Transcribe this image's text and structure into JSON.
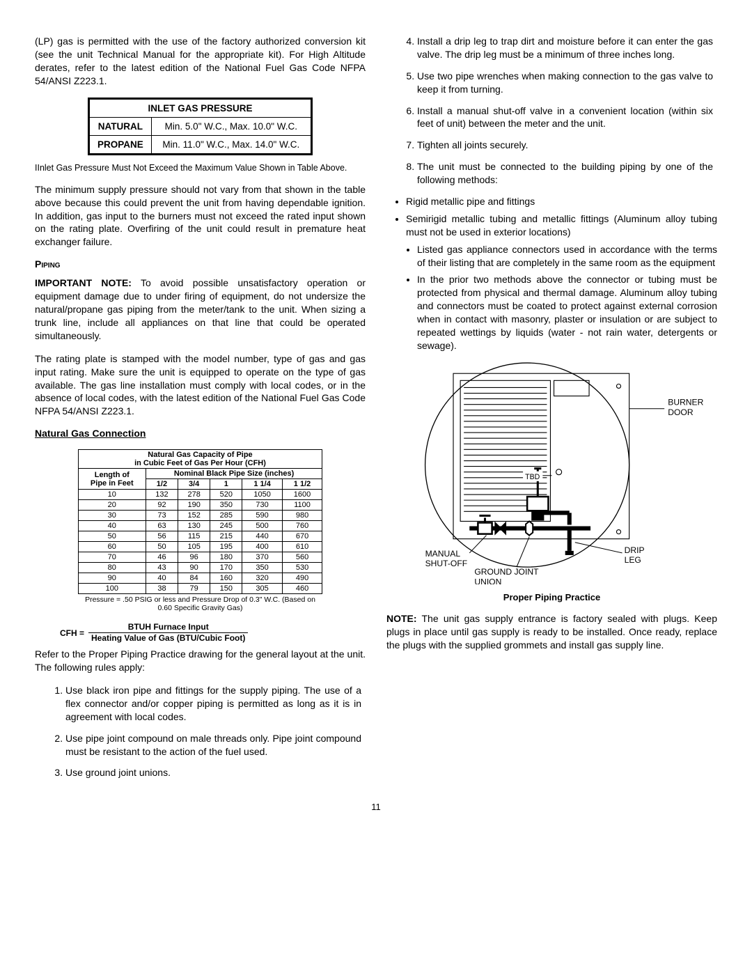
{
  "left": {
    "intro": "(LP) gas is permitted with the use of the factory authorized conversion kit (see the unit Technical Manual for the appropriate kit). For High Altitude derates, refer to the latest edition of the National Fuel Gas Code NFPA 54/ANSI Z223.1.",
    "pressure_table": {
      "header": "INLET GAS PRESSURE",
      "rows": [
        [
          "NATURAL",
          "Min.  5.0\" W.C., Max. 10.0\" W.C."
        ],
        [
          "PROPANE",
          "Min. 11.0\" W.C., Max. 14.0\" W.C."
        ]
      ]
    },
    "inlet_caption": "IInlet Gas Pressure Must Not Exceed the Maximum Value Shown in Table Above.",
    "min_supply": "The minimum supply pressure should not vary from that shown in the table above because this could prevent the unit from having dependable ignition. In addition, gas input to the burners must not exceed the rated input shown on the rating plate. Overfiring of the unit could result in premature heat exchanger failure.",
    "piping_heading": "Piping",
    "important_note_label": "IMPORTANT NOTE:",
    "important_note": " To avoid possible unsatisfactory operation or equipment damage due to under firing of equipment, do not undersize the natural/propane gas piping from the meter/tank to the unit. When sizing a trunk line, include all appliances on that line that could be operated simultaneously.",
    "rating_para": "The rating plate is stamped with the model number, type of gas and gas input rating. Make sure the unit is equipped to operate on the type of gas available.  The gas line installation must comply with local codes, or in the absence of local codes, with the latest edition of the National Fuel Gas Code NFPA 54/ANSI Z223.1.",
    "natural_gas_heading": "Natural Gas Connection",
    "capacity_table": {
      "title1": "Natural Gas Capacity of Pipe",
      "title2": "in Cubic Feet of Gas Per Hour (CFH)",
      "left_hdr1": "Length of",
      "left_hdr2": "Pipe in Feet",
      "size_hdr": "Nominal Black  Pipe Size (inches)",
      "sizes": [
        "1/2",
        "3/4",
        "1",
        "1   1/4",
        "1   1/2"
      ],
      "rows": [
        [
          "10",
          "132",
          "278",
          "520",
          "1050",
          "1600"
        ],
        [
          "20",
          "92",
          "190",
          "350",
          "730",
          "1100"
        ],
        [
          "30",
          "73",
          "152",
          "285",
          "590",
          "980"
        ],
        [
          "40",
          "63",
          "130",
          "245",
          "500",
          "760"
        ],
        [
          "50",
          "56",
          "115",
          "215",
          "440",
          "670"
        ],
        [
          "60",
          "50",
          "105",
          "195",
          "400",
          "610"
        ],
        [
          "70",
          "46",
          "96",
          "180",
          "370",
          "560"
        ],
        [
          "80",
          "43",
          "90",
          "170",
          "350",
          "530"
        ],
        [
          "90",
          "40",
          "84",
          "160",
          "320",
          "490"
        ],
        [
          "100",
          "38",
          "79",
          "150",
          "305",
          "460"
        ]
      ],
      "footer": "Pressure = .50 PSIG or less and Pressure Drop of 0.3\" W.C. (Based on 0.60 Specific Gravity Gas)"
    },
    "cfh_label": "CFH  =",
    "cfh_num": "BTUH Furnace Input",
    "cfh_den": "Heating Value of Gas (BTU/Cubic Foot)",
    "refer_para": "Refer to the Proper Piping Practice drawing for the general layout at the unit. The following rules apply:",
    "rules": [
      "Use black iron pipe and fittings for the supply piping. The use of a flex connector and/or copper piping is permitted  as long as it is in agreement with local codes.",
      "Use pipe joint compound on male threads only. Pipe joint compound must be resistant to the action of the fuel used.",
      "Use ground joint unions."
    ]
  },
  "right": {
    "rules_cont": [
      "Install a drip leg to trap dirt and moisture before it can enter the gas valve. The drip leg must be a minimum of three inches long.",
      "Use two pipe wrenches when making connection to the gas valve to keep it from turning.",
      "Install a manual shut-off valve in a convenient location (within six feet of unit) between the meter and the unit.",
      "Tighten all joints securely.",
      " The unit must be connected to the building piping by one of the following methods:"
    ],
    "bullets_lvl1": [
      "Rigid metallic pipe and fittings",
      "Semirigid metallic tubing and metallic fittings (Aluminum alloy tubing must not be used in exterior locations)"
    ],
    "bullets_lvl2": [
      "Listed gas appliance connectors used in accordance with the terms of their listing that are completely in the same room as the equipment",
      "In the prior two methods above the connector or tubing must be protected from physical and thermal damage. Aluminum alloy tubing and connectors must be coated to protect against external corrosion when in contact with masonry, plaster or insulation or are subject to repeated wettings by liquids (water - not rain water, detergents or sewage)."
    ],
    "diagram": {
      "burner_door": "BURNER\nDOOR",
      "tbd": "TBD",
      "manual": "MANUAL\nSHUT-OFF",
      "ground": "GROUND JOINT\nUNION",
      "drip": "DRIP\nLEG",
      "title": "Proper Piping Practice"
    },
    "note_label": "NOTE:",
    "note": "  The unit gas supply entrance is factory sealed with plugs. Keep plugs in place until gas supply is ready to be installed.  Once ready, replace the plugs with the supplied grommets and install gas supply line."
  },
  "page_num": "11"
}
